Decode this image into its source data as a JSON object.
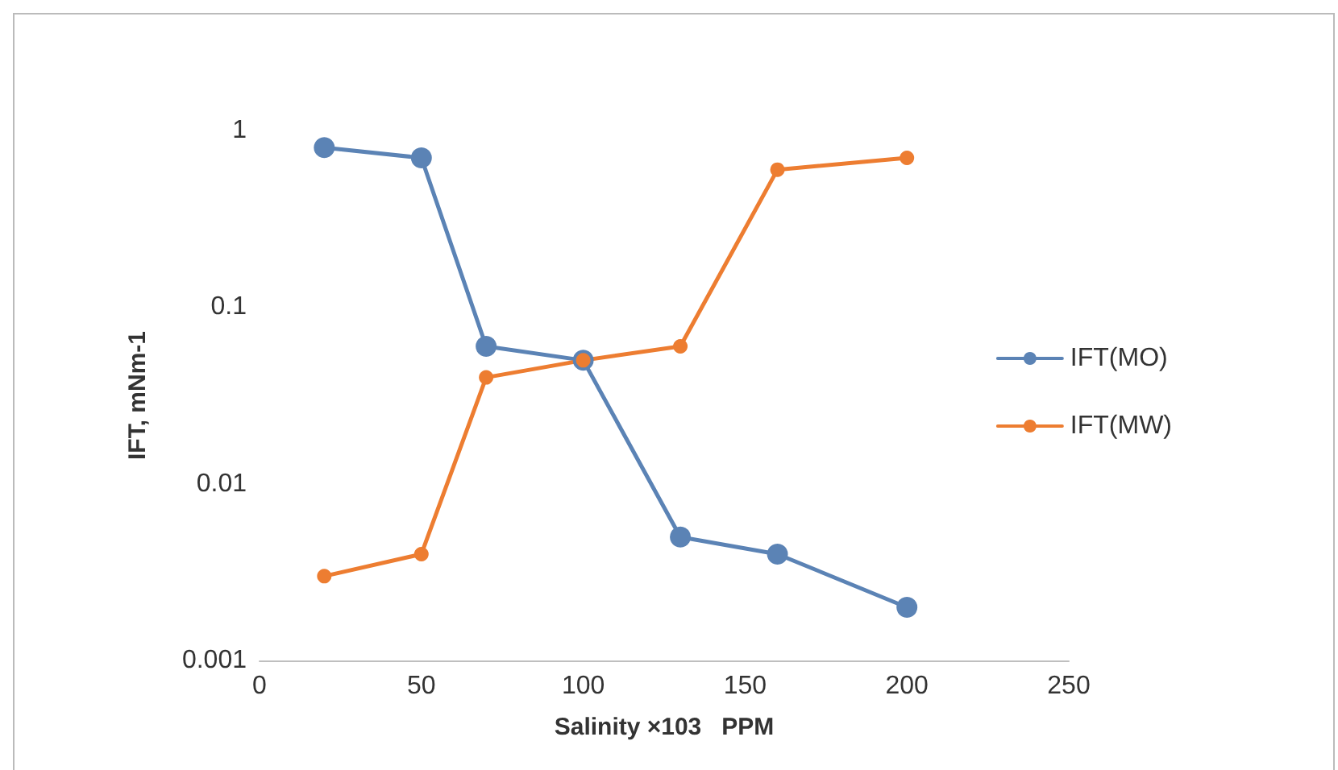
{
  "chart_data": {
    "type": "line",
    "xlabel": "Salinity ×103   PPM",
    "ylabel": "IFT, mNm-1",
    "series": [
      {
        "name": "IFT(MO)",
        "color": "#5b83b5",
        "x": [
          20,
          50,
          70,
          100,
          130,
          160,
          200
        ],
        "values": [
          0.8,
          0.7,
          0.06,
          0.05,
          0.005,
          0.004,
          0.002
        ]
      },
      {
        "name": "IFT(MW)",
        "color": "#ed7d31",
        "x": [
          20,
          50,
          70,
          100,
          130,
          160,
          200
        ],
        "values": [
          0.003,
          0.004,
          0.04,
          0.05,
          0.06,
          0.6,
          0.7
        ]
      }
    ],
    "xlim": [
      0,
      250
    ],
    "xticks": [
      0,
      50,
      100,
      150,
      200,
      250
    ],
    "ylim": [
      0.001,
      1
    ],
    "yticks": [
      0.001,
      0.01,
      0.1,
      1
    ],
    "log": "y",
    "grid": false,
    "legend": "right",
    "marker": "circle",
    "line_style": "solid"
  }
}
